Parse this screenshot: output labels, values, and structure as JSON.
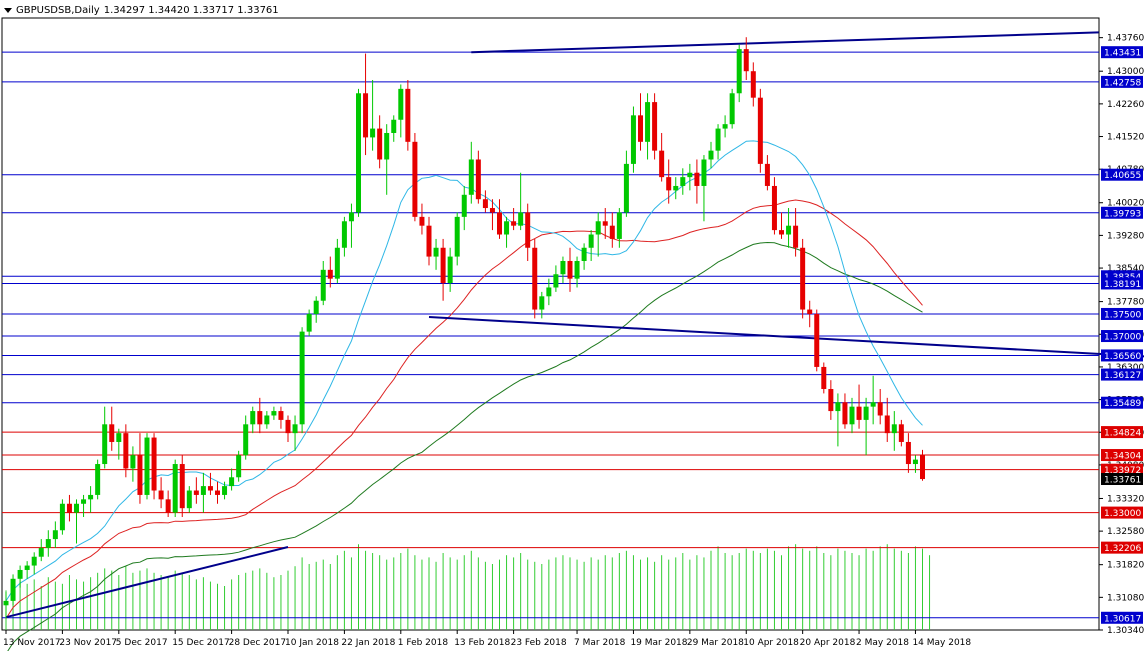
{
  "header": {
    "symbol": "GBPUSDSB,Daily",
    "ohlc": "1.34297 1.34420 1.33717 1.33761"
  },
  "colors": {
    "bull": "#00c800",
    "bear": "#e60000",
    "volume": "#32cd32",
    "ma_fast": "#2fb7e6",
    "ma_mid": "#dd2222",
    "ma_slow": "#1f7a1f",
    "trendline": "#00008b",
    "blue_level": "#0000cd",
    "red_level": "#dd0000"
  },
  "chart_data": {
    "type": "candlestick",
    "title": "GBPUSDSB,Daily",
    "ylim": [
      1.3034,
      1.4416
    ],
    "y_ticks": [
      "1.43760",
      "1.43000",
      "1.42260",
      "1.41520",
      "1.40780",
      "1.40020",
      "1.39280",
      "1.38540",
      "1.37780",
      "1.37040",
      "1.36300",
      "1.35560",
      "1.34820",
      "1.34080",
      "1.33320",
      "1.32580",
      "1.31820",
      "1.31080",
      "1.30340"
    ],
    "x_labels": [
      "13 Nov 2017",
      "23 Nov 2017",
      "5 Dec 2017",
      "15 Dec 2017",
      "28 Dec 2017",
      "10 Jan 2018",
      "22 Jan 2018",
      "1 Feb 2018",
      "13 Feb 2018",
      "23 Feb 2018",
      "7 Mar 2018",
      "19 Mar 2018",
      "29 Mar 2018",
      "10 Apr 2018",
      "20 Apr 2018",
      "2 May 2018",
      "14 May 2018"
    ],
    "levels": [
      {
        "label": "1.43431",
        "value": 1.43431,
        "color": "blue"
      },
      {
        "label": "1.42758",
        "value": 1.42758,
        "color": "blue"
      },
      {
        "label": "1.40655",
        "value": 1.40655,
        "color": "blue"
      },
      {
        "label": "1.39793",
        "value": 1.39793,
        "color": "blue"
      },
      {
        "label": "1.38354",
        "value": 1.38354,
        "color": "blue"
      },
      {
        "label": "1.38191",
        "value": 1.38191,
        "color": "blue"
      },
      {
        "label": "1.37500",
        "value": 1.375,
        "color": "blue"
      },
      {
        "label": "1.37000",
        "value": 1.37,
        "color": "blue"
      },
      {
        "label": "1.36560",
        "value": 1.3656,
        "color": "blue"
      },
      {
        "label": "1.36127",
        "value": 1.36127,
        "color": "blue"
      },
      {
        "label": "1.35489",
        "value": 1.35489,
        "color": "blue"
      },
      {
        "label": "1.34824",
        "value": 1.34824,
        "color": "red"
      },
      {
        "label": "1.34304",
        "value": 1.34304,
        "color": "red"
      },
      {
        "label": "1.33972",
        "value": 1.33972,
        "color": "red"
      },
      {
        "label": "1.33000",
        "value": 1.33,
        "color": "red"
      },
      {
        "label": "1.32206",
        "value": 1.32206,
        "color": "red"
      },
      {
        "label": "1.30617",
        "value": 1.30617,
        "color": "blue"
      }
    ],
    "current_price": "1.33761",
    "current_value": 1.33761,
    "trendlines": [
      {
        "from": [
          0,
          1.3063
        ],
        "to": [
          40,
          1.3222
        ]
      },
      {
        "from": [
          60,
          1.3743
        ],
        "to": [
          168,
          1.3648
        ]
      },
      {
        "from": [
          66,
          1.4343
        ],
        "to": [
          155,
          1.4388
        ]
      }
    ],
    "candles": [
      [
        1.309,
        1.312,
        1.306,
        1.31
      ],
      [
        1.31,
        1.316,
        1.309,
        1.315
      ],
      [
        1.315,
        1.318,
        1.313,
        1.317
      ],
      [
        1.317,
        1.319,
        1.315,
        1.318
      ],
      [
        1.318,
        1.321,
        1.316,
        1.32
      ],
      [
        1.32,
        1.324,
        1.319,
        1.322
      ],
      [
        1.322,
        1.326,
        1.32,
        1.324
      ],
      [
        1.324,
        1.328,
        1.322,
        1.326
      ],
      [
        1.326,
        1.333,
        1.325,
        1.332
      ],
      [
        1.332,
        1.334,
        1.328,
        1.33
      ],
      [
        1.33,
        1.333,
        1.323,
        1.332
      ],
      [
        1.332,
        1.334,
        1.329,
        1.333
      ],
      [
        1.333,
        1.336,
        1.33,
        1.334
      ],
      [
        1.334,
        1.342,
        1.333,
        1.341
      ],
      [
        1.341,
        1.354,
        1.34,
        1.35
      ],
      [
        1.35,
        1.354,
        1.344,
        1.346
      ],
      [
        1.346,
        1.349,
        1.342,
        1.348
      ],
      [
        1.348,
        1.35,
        1.338,
        1.34
      ],
      [
        1.34,
        1.345,
        1.337,
        1.343
      ],
      [
        1.343,
        1.348,
        1.332,
        1.334
      ],
      [
        1.334,
        1.348,
        1.333,
        1.347
      ],
      [
        1.347,
        1.348,
        1.333,
        1.335
      ],
      [
        1.335,
        1.338,
        1.331,
        1.333
      ],
      [
        1.333,
        1.335,
        1.329,
        1.33
      ],
      [
        1.33,
        1.342,
        1.329,
        1.341
      ],
      [
        1.341,
        1.343,
        1.329,
        1.331
      ],
      [
        1.331,
        1.336,
        1.33,
        1.335
      ],
      [
        1.335,
        1.338,
        1.332,
        1.334
      ],
      [
        1.334,
        1.339,
        1.33,
        1.336
      ],
      [
        1.336,
        1.339,
        1.334,
        1.335
      ],
      [
        1.335,
        1.337,
        1.332,
        1.334
      ],
      [
        1.334,
        1.337,
        1.333,
        1.336
      ],
      [
        1.336,
        1.34,
        1.335,
        1.338
      ],
      [
        1.338,
        1.344,
        1.337,
        1.343
      ],
      [
        1.343,
        1.352,
        1.342,
        1.35
      ],
      [
        1.35,
        1.354,
        1.348,
        1.353
      ],
      [
        1.353,
        1.356,
        1.348,
        1.35
      ],
      [
        1.35,
        1.353,
        1.349,
        1.352
      ],
      [
        1.352,
        1.354,
        1.351,
        1.353
      ],
      [
        1.353,
        1.354,
        1.349,
        1.351
      ],
      [
        1.351,
        1.352,
        1.346,
        1.348
      ],
      [
        1.348,
        1.352,
        1.344,
        1.35
      ],
      [
        1.35,
        1.372,
        1.348,
        1.371
      ],
      [
        1.371,
        1.376,
        1.37,
        1.375
      ],
      [
        1.375,
        1.379,
        1.373,
        1.378
      ],
      [
        1.378,
        1.387,
        1.377,
        1.385
      ],
      [
        1.385,
        1.388,
        1.381,
        1.383
      ],
      [
        1.383,
        1.392,
        1.382,
        1.39
      ],
      [
        1.39,
        1.397,
        1.388,
        1.396
      ],
      [
        1.396,
        1.4,
        1.39,
        1.398
      ],
      [
        1.398,
        1.426,
        1.397,
        1.425
      ],
      [
        1.425,
        1.434,
        1.411,
        1.415
      ],
      [
        1.415,
        1.428,
        1.412,
        1.417
      ],
      [
        1.417,
        1.42,
        1.408,
        1.41
      ],
      [
        1.41,
        1.418,
        1.402,
        1.416
      ],
      [
        1.416,
        1.42,
        1.414,
        1.419
      ],
      [
        1.419,
        1.427,
        1.415,
        1.426
      ],
      [
        1.426,
        1.428,
        1.412,
        1.414
      ],
      [
        1.414,
        1.416,
        1.396,
        1.397
      ],
      [
        1.397,
        1.4,
        1.393,
        1.395
      ],
      [
        1.395,
        1.397,
        1.386,
        1.388
      ],
      [
        1.388,
        1.392,
        1.385,
        1.39
      ],
      [
        1.39,
        1.392,
        1.378,
        1.382
      ],
      [
        1.382,
        1.39,
        1.38,
        1.388
      ],
      [
        1.388,
        1.398,
        1.386,
        1.397
      ],
      [
        1.397,
        1.404,
        1.394,
        1.402
      ],
      [
        1.402,
        1.414,
        1.4,
        1.41
      ],
      [
        1.41,
        1.412,
        1.4,
        1.401
      ],
      [
        1.401,
        1.403,
        1.398,
        1.399
      ],
      [
        1.399,
        1.401,
        1.394,
        1.398
      ],
      [
        1.398,
        1.401,
        1.392,
        1.393
      ],
      [
        1.393,
        1.397,
        1.39,
        1.396
      ],
      [
        1.396,
        1.399,
        1.394,
        1.395
      ],
      [
        1.395,
        1.407,
        1.394,
        1.398
      ],
      [
        1.398,
        1.4,
        1.387,
        1.39
      ],
      [
        1.39,
        1.392,
        1.374,
        1.376
      ],
      [
        1.376,
        1.38,
        1.374,
        1.379
      ],
      [
        1.379,
        1.383,
        1.377,
        1.381
      ],
      [
        1.381,
        1.386,
        1.38,
        1.384
      ],
      [
        1.384,
        1.388,
        1.382,
        1.387
      ],
      [
        1.387,
        1.39,
        1.38,
        1.383
      ],
      [
        1.383,
        1.388,
        1.381,
        1.387
      ],
      [
        1.387,
        1.391,
        1.385,
        1.39
      ],
      [
        1.39,
        1.394,
        1.387,
        1.393
      ],
      [
        1.393,
        1.398,
        1.388,
        1.396
      ],
      [
        1.396,
        1.399,
        1.392,
        1.395
      ],
      [
        1.395,
        1.398,
        1.39,
        1.392
      ],
      [
        1.392,
        1.399,
        1.39,
        1.398
      ],
      [
        1.398,
        1.412,
        1.397,
        1.409
      ],
      [
        1.409,
        1.422,
        1.407,
        1.42
      ],
      [
        1.42,
        1.425,
        1.412,
        1.414
      ],
      [
        1.414,
        1.425,
        1.41,
        1.423
      ],
      [
        1.423,
        1.425,
        1.41,
        1.412
      ],
      [
        1.412,
        1.416,
        1.405,
        1.406
      ],
      [
        1.406,
        1.41,
        1.4,
        1.403
      ],
      [
        1.403,
        1.406,
        1.401,
        1.404
      ],
      [
        1.404,
        1.408,
        1.402,
        1.406
      ],
      [
        1.406,
        1.409,
        1.403,
        1.407
      ],
      [
        1.407,
        1.41,
        1.4,
        1.404
      ],
      [
        1.404,
        1.411,
        1.396,
        1.41
      ],
      [
        1.41,
        1.414,
        1.408,
        1.412
      ],
      [
        1.412,
        1.418,
        1.41,
        1.417
      ],
      [
        1.417,
        1.42,
        1.415,
        1.418
      ],
      [
        1.418,
        1.426,
        1.417,
        1.425
      ],
      [
        1.425,
        1.436,
        1.423,
        1.435
      ],
      [
        1.435,
        1.4377,
        1.428,
        1.43
      ],
      [
        1.43,
        1.432,
        1.422,
        1.424
      ],
      [
        1.424,
        1.426,
        1.407,
        1.409
      ],
      [
        1.409,
        1.411,
        1.403,
        1.404
      ],
      [
        1.404,
        1.406,
        1.393,
        1.394
      ],
      [
        1.394,
        1.398,
        1.392,
        1.393
      ],
      [
        1.393,
        1.399,
        1.39,
        1.395
      ],
      [
        1.395,
        1.399,
        1.388,
        1.39
      ],
      [
        1.39,
        1.392,
        1.374,
        1.376
      ],
      [
        1.376,
        1.378,
        1.372,
        1.375
      ],
      [
        1.375,
        1.376,
        1.362,
        1.363
      ],
      [
        1.363,
        1.364,
        1.357,
        1.358
      ],
      [
        1.358,
        1.36,
        1.351,
        1.353
      ],
      [
        1.353,
        1.357,
        1.345,
        1.355
      ],
      [
        1.355,
        1.357,
        1.349,
        1.35
      ],
      [
        1.35,
        1.356,
        1.348,
        1.354
      ],
      [
        1.354,
        1.359,
        1.349,
        1.351
      ],
      [
        1.351,
        1.356,
        1.343,
        1.354
      ],
      [
        1.354,
        1.361,
        1.35,
        1.355
      ],
      [
        1.355,
        1.358,
        1.35,
        1.352
      ],
      [
        1.352,
        1.356,
        1.346,
        1.348
      ],
      [
        1.348,
        1.353,
        1.344,
        1.35
      ],
      [
        1.35,
        1.351,
        1.345,
        1.346
      ],
      [
        1.346,
        1.348,
        1.339,
        1.341
      ],
      [
        1.341,
        1.343,
        1.339,
        1.342
      ],
      [
        1.343,
        1.3442,
        1.3372,
        1.3376
      ]
    ],
    "volume_scale": [
      0,
      5
    ],
    "volume": [
      1.8,
      2.0,
      2.2,
      2.1,
      2.3,
      2.0,
      2.4,
      2.2,
      2.1,
      2.5,
      2.3,
      2.2,
      2.4,
      2.6,
      2.8,
      2.7,
      2.5,
      2.9,
      2.6,
      2.7,
      2.8,
      2.6,
      2.5,
      2.4,
      2.7,
      2.6,
      2.5,
      2.3,
      2.4,
      2.2,
      2.1,
      2.0,
      2.3,
      2.5,
      2.6,
      2.7,
      2.8,
      2.6,
      2.4,
      2.5,
      2.7,
      2.9,
      3.3,
      3.0,
      3.1,
      3.2,
      3.0,
      3.4,
      3.6,
      3.3,
      3.9,
      3.6,
      3.5,
      3.4,
      3.2,
      3.3,
      3.5,
      3.7,
      3.4,
      3.2,
      3.3,
      3.1,
      3.5,
      3.3,
      3.2,
      3.4,
      3.6,
      3.3,
      3.1,
      3.0,
      3.2,
      3.4,
      3.3,
      3.5,
      3.2,
      3.1,
      3.0,
      3.2,
      3.3,
      3.4,
      3.3,
      3.2,
      3.1,
      3.3,
      3.2,
      3.4,
      3.3,
      3.5,
      3.6,
      3.4,
      3.2,
      3.3,
      3.1,
      3.4,
      3.2,
      3.3,
      3.5,
      3.2,
      3.4,
      3.3,
      3.6,
      3.8,
      3.5,
      3.4,
      3.5,
      3.7,
      3.6,
      3.5,
      3.7,
      3.6,
      3.4,
      3.8,
      3.9,
      3.7,
      3.6,
      3.8,
      3.5,
      3.4,
      3.7,
      3.6,
      3.5,
      3.4,
      3.7,
      3.6,
      3.8,
      3.9,
      3.7,
      3.6,
      3.5,
      3.8,
      3.7,
      3.4
    ]
  }
}
